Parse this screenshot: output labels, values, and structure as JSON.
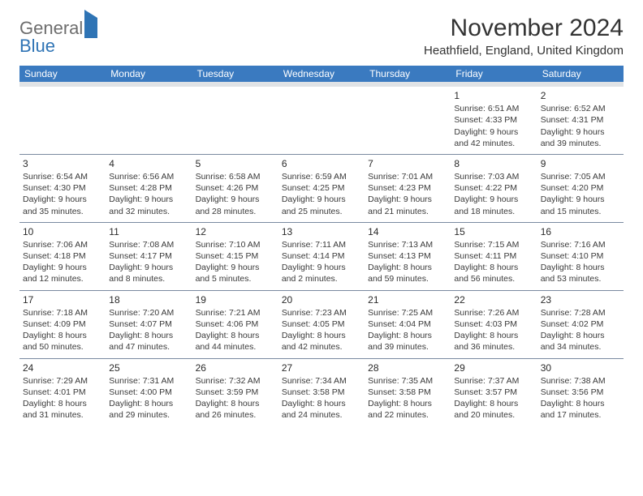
{
  "logo": {
    "word1": "General",
    "word2": "Blue"
  },
  "title": "November 2024",
  "subtitle": "Heathfield, England, United Kingdom",
  "colors": {
    "header_bg": "#3a7ac0",
    "header_fg": "#ffffff",
    "spacer_bg": "#e0e3e6",
    "rule": "#7a8aa0",
    "logo_gray": "#6d6d6d",
    "logo_blue": "#2f74b5"
  },
  "day_headers": [
    "Sunday",
    "Monday",
    "Tuesday",
    "Wednesday",
    "Thursday",
    "Friday",
    "Saturday"
  ],
  "weeks": [
    [
      {
        "n": "",
        "lines": []
      },
      {
        "n": "",
        "lines": []
      },
      {
        "n": "",
        "lines": []
      },
      {
        "n": "",
        "lines": []
      },
      {
        "n": "",
        "lines": []
      },
      {
        "n": "1",
        "lines": [
          "Sunrise: 6:51 AM",
          "Sunset: 4:33 PM",
          "Daylight: 9 hours and 42 minutes."
        ]
      },
      {
        "n": "2",
        "lines": [
          "Sunrise: 6:52 AM",
          "Sunset: 4:31 PM",
          "Daylight: 9 hours and 39 minutes."
        ]
      }
    ],
    [
      {
        "n": "3",
        "lines": [
          "Sunrise: 6:54 AM",
          "Sunset: 4:30 PM",
          "Daylight: 9 hours and 35 minutes."
        ]
      },
      {
        "n": "4",
        "lines": [
          "Sunrise: 6:56 AM",
          "Sunset: 4:28 PM",
          "Daylight: 9 hours and 32 minutes."
        ]
      },
      {
        "n": "5",
        "lines": [
          "Sunrise: 6:58 AM",
          "Sunset: 4:26 PM",
          "Daylight: 9 hours and 28 minutes."
        ]
      },
      {
        "n": "6",
        "lines": [
          "Sunrise: 6:59 AM",
          "Sunset: 4:25 PM",
          "Daylight: 9 hours and 25 minutes."
        ]
      },
      {
        "n": "7",
        "lines": [
          "Sunrise: 7:01 AM",
          "Sunset: 4:23 PM",
          "Daylight: 9 hours and 21 minutes."
        ]
      },
      {
        "n": "8",
        "lines": [
          "Sunrise: 7:03 AM",
          "Sunset: 4:22 PM",
          "Daylight: 9 hours and 18 minutes."
        ]
      },
      {
        "n": "9",
        "lines": [
          "Sunrise: 7:05 AM",
          "Sunset: 4:20 PM",
          "Daylight: 9 hours and 15 minutes."
        ]
      }
    ],
    [
      {
        "n": "10",
        "lines": [
          "Sunrise: 7:06 AM",
          "Sunset: 4:18 PM",
          "Daylight: 9 hours and 12 minutes."
        ]
      },
      {
        "n": "11",
        "lines": [
          "Sunrise: 7:08 AM",
          "Sunset: 4:17 PM",
          "Daylight: 9 hours and 8 minutes."
        ]
      },
      {
        "n": "12",
        "lines": [
          "Sunrise: 7:10 AM",
          "Sunset: 4:15 PM",
          "Daylight: 9 hours and 5 minutes."
        ]
      },
      {
        "n": "13",
        "lines": [
          "Sunrise: 7:11 AM",
          "Sunset: 4:14 PM",
          "Daylight: 9 hours and 2 minutes."
        ]
      },
      {
        "n": "14",
        "lines": [
          "Sunrise: 7:13 AM",
          "Sunset: 4:13 PM",
          "Daylight: 8 hours and 59 minutes."
        ]
      },
      {
        "n": "15",
        "lines": [
          "Sunrise: 7:15 AM",
          "Sunset: 4:11 PM",
          "Daylight: 8 hours and 56 minutes."
        ]
      },
      {
        "n": "16",
        "lines": [
          "Sunrise: 7:16 AM",
          "Sunset: 4:10 PM",
          "Daylight: 8 hours and 53 minutes."
        ]
      }
    ],
    [
      {
        "n": "17",
        "lines": [
          "Sunrise: 7:18 AM",
          "Sunset: 4:09 PM",
          "Daylight: 8 hours and 50 minutes."
        ]
      },
      {
        "n": "18",
        "lines": [
          "Sunrise: 7:20 AM",
          "Sunset: 4:07 PM",
          "Daylight: 8 hours and 47 minutes."
        ]
      },
      {
        "n": "19",
        "lines": [
          "Sunrise: 7:21 AM",
          "Sunset: 4:06 PM",
          "Daylight: 8 hours and 44 minutes."
        ]
      },
      {
        "n": "20",
        "lines": [
          "Sunrise: 7:23 AM",
          "Sunset: 4:05 PM",
          "Daylight: 8 hours and 42 minutes."
        ]
      },
      {
        "n": "21",
        "lines": [
          "Sunrise: 7:25 AM",
          "Sunset: 4:04 PM",
          "Daylight: 8 hours and 39 minutes."
        ]
      },
      {
        "n": "22",
        "lines": [
          "Sunrise: 7:26 AM",
          "Sunset: 4:03 PM",
          "Daylight: 8 hours and 36 minutes."
        ]
      },
      {
        "n": "23",
        "lines": [
          "Sunrise: 7:28 AM",
          "Sunset: 4:02 PM",
          "Daylight: 8 hours and 34 minutes."
        ]
      }
    ],
    [
      {
        "n": "24",
        "lines": [
          "Sunrise: 7:29 AM",
          "Sunset: 4:01 PM",
          "Daylight: 8 hours and 31 minutes."
        ]
      },
      {
        "n": "25",
        "lines": [
          "Sunrise: 7:31 AM",
          "Sunset: 4:00 PM",
          "Daylight: 8 hours and 29 minutes."
        ]
      },
      {
        "n": "26",
        "lines": [
          "Sunrise: 7:32 AM",
          "Sunset: 3:59 PM",
          "Daylight: 8 hours and 26 minutes."
        ]
      },
      {
        "n": "27",
        "lines": [
          "Sunrise: 7:34 AM",
          "Sunset: 3:58 PM",
          "Daylight: 8 hours and 24 minutes."
        ]
      },
      {
        "n": "28",
        "lines": [
          "Sunrise: 7:35 AM",
          "Sunset: 3:58 PM",
          "Daylight: 8 hours and 22 minutes."
        ]
      },
      {
        "n": "29",
        "lines": [
          "Sunrise: 7:37 AM",
          "Sunset: 3:57 PM",
          "Daylight: 8 hours and 20 minutes."
        ]
      },
      {
        "n": "30",
        "lines": [
          "Sunrise: 7:38 AM",
          "Sunset: 3:56 PM",
          "Daylight: 8 hours and 17 minutes."
        ]
      }
    ]
  ]
}
